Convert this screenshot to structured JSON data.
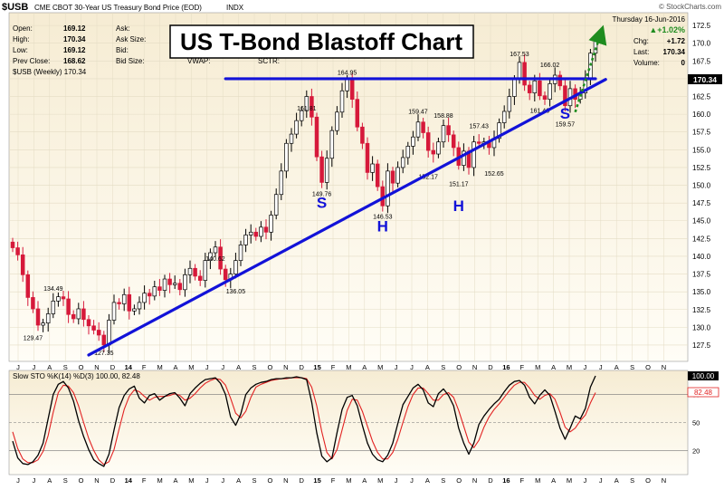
{
  "header": {
    "symbol": "$USB",
    "description": "CME CBOT 30-Year US Treasury Bond Price (EOD)",
    "exchange": "INDX",
    "watermark": "© StockCharts.com",
    "date": "Thursday  16-Jun-2016",
    "change_pct": "▲+1.02%",
    "chg_label": "Chg:",
    "chg_value": "+1.72",
    "last_label": "Last:",
    "last_value": "170.34",
    "volume_label": "Volume:",
    "volume_value": "0",
    "stats": [
      {
        "label": "Open:",
        "value": "169.12"
      },
      {
        "label": "High:",
        "value": "170.34"
      },
      {
        "label": "Low:",
        "value": "169.12"
      },
      {
        "label": "Prev Close:",
        "value": "168.62"
      }
    ],
    "quote_labels": [
      "Ask:",
      "Ask Size:",
      "Bid:",
      "Bid Size:"
    ],
    "extra_labels": [
      "VWAP:",
      "SCTR:"
    ],
    "legend": "$USB (Weekly) 170.34",
    "title_box": "US T-Bond Blastoff Chart"
  },
  "colors": {
    "background": "#ffffff",
    "price_bg_top": "#f6ecd3",
    "price_bg_bottom": "#fffdf6",
    "grid": "#e4dcc4",
    "up": "#ffffff",
    "down": "#d6193a",
    "candle_line": "#000000",
    "trendline": "#1212d8",
    "arrow": "#1f8c1f",
    "sto_k": "#000000",
    "sto_d": "#e22222"
  },
  "chart_data": {
    "type": "candlestick",
    "y_axis": {
      "min": 125.2,
      "max": 174.3,
      "ticks": [
        "127.5",
        "130.0",
        "132.5",
        "135.0",
        "137.5",
        "140.0",
        "142.5",
        "145.0",
        "147.5",
        "150.0",
        "152.5",
        "155.0",
        "157.5",
        "160.0",
        "162.5",
        "165.0",
        "167.5",
        "170.0",
        "172.5"
      ],
      "last_badge": "170.34"
    },
    "x_axis": {
      "labels": [
        "J",
        "J",
        "A",
        "S",
        "O",
        "N",
        "D",
        "14",
        "F",
        "M",
        "A",
        "M",
        "J",
        "J",
        "A",
        "S",
        "O",
        "N",
        "D",
        "15",
        "F",
        "M",
        "A",
        "M",
        "J",
        "J",
        "A",
        "S",
        "O",
        "N",
        "D",
        "16",
        "F",
        "M",
        "A",
        "M",
        "J",
        "J",
        "A",
        "S",
        "O",
        "N"
      ],
      "bold": [
        "14",
        "15",
        "16"
      ]
    },
    "price_labels": [
      {
        "i": 4,
        "text": "129.47"
      },
      {
        "i": 8,
        "text": "134.49"
      },
      {
        "i": 18,
        "text": "127.35"
      },
      {
        "i": 40,
        "text": "140.62"
      },
      {
        "i": 44,
        "text": "136.05"
      },
      {
        "i": 58,
        "text": "161.81"
      },
      {
        "i": 61,
        "text": "149.76"
      },
      {
        "i": 66,
        "text": "164.95"
      },
      {
        "i": 73,
        "text": "146.53"
      },
      {
        "i": 80,
        "text": "159.47"
      },
      {
        "i": 82,
        "text": "152.17"
      },
      {
        "i": 85,
        "text": "158.88"
      },
      {
        "i": 88,
        "text": "151.17"
      },
      {
        "i": 92,
        "text": "157.43"
      },
      {
        "i": 95,
        "text": "152.65"
      },
      {
        "i": 100,
        "text": "167.53"
      },
      {
        "i": 104,
        "text": "161.46"
      },
      {
        "i": 106,
        "text": "166.02"
      },
      {
        "i": 109,
        "text": "159.57"
      }
    ],
    "annotations": [
      {
        "text": "S",
        "i": 61,
        "price": 146.8
      },
      {
        "text": "H",
        "i": 73,
        "price": 143.5
      },
      {
        "text": "H",
        "i": 88,
        "price": 146.4
      },
      {
        "text": "S",
        "i": 109,
        "price": 159.4
      }
    ],
    "lines": [
      {
        "name": "resistance",
        "from": {
          "i": 42,
          "price": 165.0
        },
        "to": {
          "i": 115,
          "price": 165.0
        }
      },
      {
        "name": "support",
        "from": {
          "i": 15,
          "price": 126.1
        },
        "to": {
          "i": 117,
          "price": 164.9
        }
      }
    ],
    "arrow": {
      "from": {
        "i": 111,
        "price": 160.3
      },
      "to": {
        "i": 116,
        "price": 171.3
      }
    },
    "closes": [
      141.2,
      140.2,
      137.4,
      134.2,
      132.6,
      130.3,
      130.6,
      131.9,
      133.7,
      134.3,
      134.0,
      131.8,
      131.2,
      132.6,
      131.1,
      130.2,
      129.6,
      128.9,
      127.5,
      131.0,
      133.5,
      133.3,
      134.6,
      132.3,
      132.6,
      133.5,
      134.8,
      134.4,
      135.7,
      135.2,
      136.8,
      136.0,
      136.2,
      135.3,
      137.4,
      138.3,
      137.2,
      136.6,
      139.4,
      140.5,
      141.3,
      138.2,
      136.7,
      137.5,
      139.4,
      141.6,
      143.0,
      143.4,
      142.8,
      144.1,
      143.4,
      145.8,
      148.7,
      152.0,
      155.9,
      157.2,
      159.1,
      160.5,
      162.5,
      159.6,
      154.0,
      150.4,
      153.8,
      157.7,
      160.3,
      163.3,
      164.9,
      162.1,
      158.2,
      155.9,
      151.8,
      153.0,
      149.8,
      147.1,
      152.0,
      150.3,
      152.5,
      153.9,
      155.5,
      156.8,
      158.9,
      157.4,
      154.9,
      154.4,
      156.1,
      158.4,
      157.1,
      155.3,
      152.8,
      154.8,
      152.5,
      156.1,
      155.9,
      156.1,
      155.3,
      156.6,
      158.8,
      160.4,
      162.5,
      164.9,
      167.3,
      164.1,
      163.0,
      164.7,
      162.6,
      162.1,
      164.3,
      165.5,
      164.0,
      161.2,
      163.6,
      162.1,
      163.0,
      165.1,
      168.6,
      170.3
    ],
    "indicator": {
      "title": "Slow STO %K(14) %D(3) 100.00, 82.48",
      "k_label": "100.00",
      "d_label": "82.48",
      "levels": [
        80,
        50,
        20
      ],
      "tick_labels": [
        "100",
        "80",
        "50",
        "20"
      ],
      "k": [
        30,
        12,
        6,
        5,
        8,
        15,
        28,
        54,
        80,
        91,
        94,
        87,
        73,
        52,
        35,
        21,
        10,
        6,
        3,
        16,
        42,
        66,
        79,
        86,
        89,
        76,
        71,
        79,
        81,
        74,
        78,
        81,
        82,
        76,
        68,
        81,
        87,
        92,
        96,
        97,
        98,
        92,
        80,
        56,
        47,
        59,
        80,
        87,
        91,
        93,
        94,
        96,
        97,
        97,
        98,
        98,
        99,
        98,
        96,
        72,
        39,
        14,
        8,
        12,
        39,
        64,
        77,
        79,
        68,
        47,
        28,
        16,
        10,
        8,
        15,
        28,
        49,
        69,
        78,
        87,
        91,
        85,
        71,
        67,
        81,
        86,
        79,
        68,
        44,
        28,
        16,
        28,
        48,
        57,
        64,
        70,
        75,
        83,
        90,
        94,
        95,
        90,
        77,
        70,
        79,
        85,
        79,
        62,
        44,
        32,
        44,
        57,
        54,
        65,
        88,
        100
      ],
      "d": [
        40,
        22,
        11,
        7,
        7,
        10,
        19,
        36,
        61,
        82,
        90,
        89,
        82,
        68,
        50,
        33,
        20,
        10,
        5,
        8,
        21,
        43,
        64,
        78,
        85,
        83,
        78,
        74,
        77,
        78,
        78,
        79,
        81,
        79,
        74,
        76,
        81,
        87,
        92,
        95,
        97,
        96,
        90,
        76,
        60,
        55,
        62,
        77,
        88,
        91,
        93,
        95,
        96,
        97,
        97,
        98,
        98,
        98,
        97,
        88,
        68,
        40,
        18,
        11,
        21,
        42,
        63,
        75,
        74,
        62,
        46,
        30,
        18,
        11,
        11,
        18,
        32,
        50,
        67,
        80,
        87,
        87,
        81,
        74,
        74,
        80,
        82,
        77,
        63,
        46,
        29,
        23,
        31,
        45,
        56,
        64,
        70,
        77,
        84,
        90,
        93,
        93,
        87,
        79,
        75,
        79,
        81,
        75,
        61,
        45,
        40,
        44,
        52,
        58,
        71,
        82
      ]
    }
  }
}
